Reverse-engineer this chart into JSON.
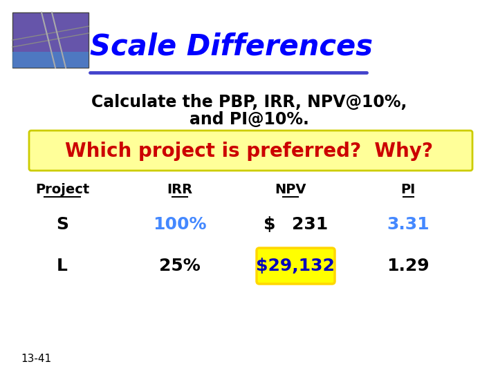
{
  "title": "Scale Differences",
  "title_color": "#0000FF",
  "title_style": "italic bold",
  "subtitle_line1": "Calculate the PBP, IRR, NPV@10%,",
  "subtitle_line2": "and PI@10%.",
  "subtitle_color": "#000000",
  "highlight_text": "Which project is preferred?  Why?",
  "highlight_text_color": "#CC0000",
  "highlight_bg_color": "#FFFF99",
  "highlight_border_color": "#CCCC00",
  "col_headers": [
    "Project",
    "IRR",
    "NPV",
    "PI"
  ],
  "col_header_color": "#000000",
  "row_S": [
    "S",
    "100%",
    "$ 231",
    "3.31"
  ],
  "row_L": [
    "L",
    "25%",
    "$29,132",
    "1.29"
  ],
  "row_S_colors": [
    "#000000",
    "#4488FF",
    "#000000",
    "#4488FF"
  ],
  "row_L_colors": [
    "#000000",
    "#000000",
    "#0000FF",
    "#000000"
  ],
  "npv_L_highlight_bg": "#FFFF00",
  "npv_L_highlight_border": "#FFD700",
  "slide_number": "13-41",
  "bg_color": "#FFFFFF",
  "underline_color": "#4444CC",
  "header_underline_color": "#000000"
}
